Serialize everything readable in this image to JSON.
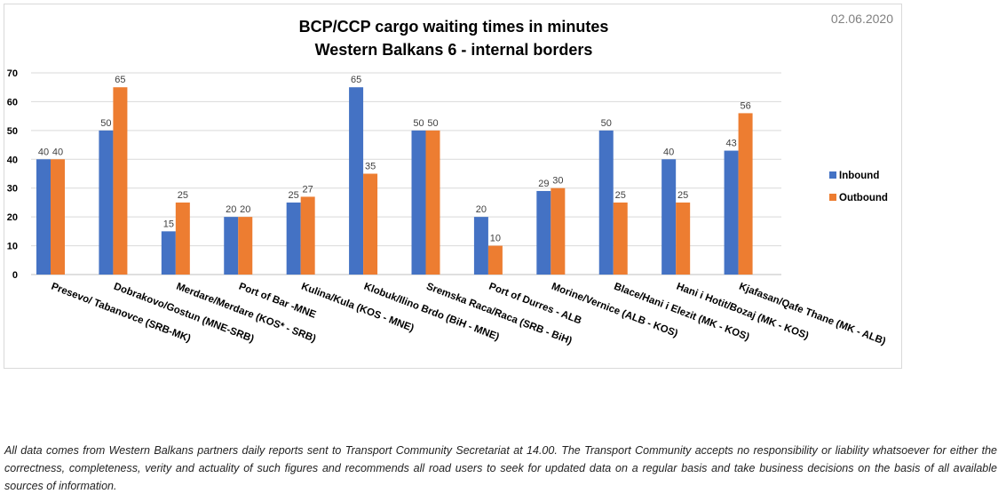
{
  "chart_data": {
    "type": "bar",
    "title": [
      "BCP/CCP cargo waiting times in minutes",
      "Western Balkans 6 - internal borders"
    ],
    "date": "02.06.2020",
    "categories": [
      "Presevo/ Tabanovce (SRB-MK)",
      "Dobrakovo/Gostun (MNE-SRB)",
      "Merdare/Merdare (KOS* - SRB)",
      "Port of Bar -MNE",
      "Kulina/Kula (KOS - MNE)",
      "Klobuk/Ilino Brdo (BiH - MNE)",
      "Sremska Raca/Raca (SRB - BiH)",
      "Port of Durres - ALB",
      "Morine/Vernice (ALB - KOS)",
      "Blace/Hani i Elezit (MK - KOS)",
      "Hani i Hotit/Bozaj (MK - KOS)",
      "Kjafasan/Qafe Thane (MK - ALB)"
    ],
    "series": [
      {
        "name": "Inbound",
        "color": "#4472C4",
        "values": [
          40,
          50,
          15,
          20,
          25,
          65,
          50,
          20,
          29,
          50,
          40,
          43
        ]
      },
      {
        "name": "Outbound",
        "color": "#ED7D31",
        "values": [
          40,
          65,
          25,
          20,
          27,
          35,
          50,
          10,
          30,
          25,
          25,
          56
        ]
      }
    ],
    "ylim": [
      0,
      70
    ],
    "yticks": [
      0,
      10,
      20,
      30,
      40,
      50,
      60,
      70
    ],
    "grid": true,
    "legend": "right"
  },
  "disclaimer": "All data comes from Western Balkans partners daily reports sent to Transport Community Secretariat at 14.00. The Transport Community accepts no responsibility or liability whatsoever for either the correctness, completeness, verity and actuality of such figures and recommends all road users to seek for updated data on a regular basis and take business decisions on the basis of all available sources of information."
}
